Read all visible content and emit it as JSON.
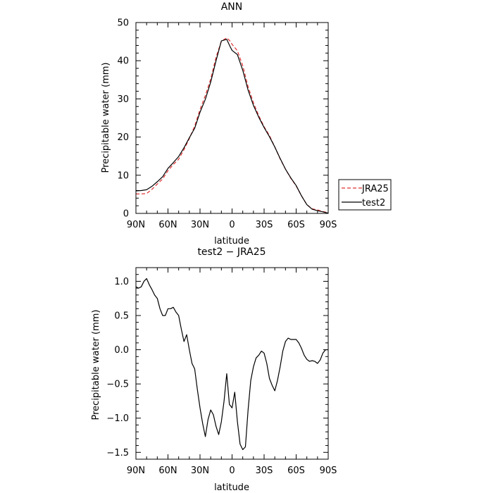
{
  "chart_data": [
    {
      "type": "line",
      "title": "ANN",
      "xlabel": "latitude",
      "ylabel": "Precipitable water  (mm)",
      "xlim": [
        90,
        -90
      ],
      "ylim": [
        0,
        50
      ],
      "x_ticks": [
        90,
        60,
        30,
        0,
        -30,
        -60,
        -90
      ],
      "x_tick_labels": [
        "90N",
        "60N",
        "30N",
        "0",
        "30S",
        "60S",
        "90S"
      ],
      "y_ticks": [
        0,
        10,
        20,
        30,
        40,
        50
      ],
      "y_tick_labels": [
        "0",
        "10",
        "20",
        "30",
        "40",
        "50"
      ],
      "grid": false,
      "legend_position": "right, outside plot",
      "series": [
        {
          "name": "JRA25",
          "color": "#e03030",
          "dash": "dashed",
          "x": [
            90,
            85,
            80,
            75,
            70,
            65,
            60,
            55,
            50,
            45,
            40,
            35,
            30,
            25,
            20,
            15,
            10,
            5,
            2,
            0,
            -5,
            -10,
            -15,
            -20,
            -25,
            -30,
            -35,
            -40,
            -45,
            -50,
            -55,
            -60,
            -65,
            -70,
            -75,
            -80,
            -85,
            -88,
            -90
          ],
          "y": [
            5.1,
            5.1,
            5.2,
            6.3,
            7.7,
            9.0,
            11.2,
            12.8,
            14.2,
            16.7,
            19.6,
            22.9,
            27.2,
            30.9,
            35.2,
            40.9,
            45.1,
            46.0,
            45.2,
            44.3,
            42.6,
            38.7,
            33.2,
            29.0,
            25.6,
            22.7,
            20.4,
            17.4,
            14.3,
            11.6,
            9.2,
            7.2,
            4.6,
            2.3,
            1.2,
            0.9,
            0.5,
            0.3,
            0.2
          ]
        },
        {
          "name": "test2",
          "color": "#000000",
          "dash": "solid",
          "x": [
            90,
            85,
            80,
            75,
            70,
            65,
            60,
            55,
            50,
            45,
            40,
            35,
            30,
            25,
            20,
            15,
            10,
            5,
            2,
            0,
            -5,
            -10,
            -15,
            -20,
            -25,
            -30,
            -35,
            -40,
            -45,
            -50,
            -55,
            -60,
            -65,
            -70,
            -75,
            -80,
            -85,
            -88,
            -90
          ],
          "y": [
            5.9,
            6.0,
            6.2,
            7.1,
            8.3,
            9.6,
            11.8,
            13.3,
            14.9,
            17.2,
            19.8,
            22.3,
            26.5,
            29.9,
            34.4,
            40.0,
            45.2,
            45.6,
            43.8,
            42.7,
            41.6,
            37.5,
            32.3,
            28.3,
            25.2,
            22.5,
            20.1,
            17.4,
            14.4,
            11.6,
            9.3,
            7.3,
            4.6,
            2.3,
            1.1,
            0.7,
            0.4,
            0.2,
            0.1
          ]
        }
      ]
    },
    {
      "type": "line",
      "title": "test2  −  JRA25",
      "xlabel": "latitude",
      "ylabel": "Precipitable water  (mm)",
      "xlim": [
        90,
        -90
      ],
      "ylim": [
        -1.6,
        1.2
      ],
      "x_ticks": [
        90,
        60,
        30,
        0,
        -30,
        -60,
        -90
      ],
      "x_tick_labels": [
        "90N",
        "60N",
        "30N",
        "0",
        "30S",
        "60S",
        "90S"
      ],
      "y_ticks": [
        1.0,
        0.5,
        0.0,
        -0.5,
        -1.0,
        -1.5
      ],
      "y_tick_labels": [
        "1.0",
        "0.5",
        "0.0",
        "−0.5",
        "−1.0",
        "−1.5"
      ],
      "grid": false,
      "series": [
        {
          "color": "#000000",
          "dash": "solid",
          "x": [
            90,
            87.5,
            85,
            82.5,
            80,
            77.5,
            75,
            72.5,
            70,
            67.5,
            65,
            62.5,
            60,
            57.5,
            55,
            52.5,
            50,
            47.5,
            45,
            42.5,
            40,
            37.5,
            35,
            32.5,
            30,
            27.5,
            25,
            22.5,
            20,
            17.5,
            15,
            12.5,
            10,
            7.5,
            5,
            2.5,
            0,
            -2.5,
            -5,
            -7.5,
            -10,
            -12.5,
            -15,
            -17.5,
            -20,
            -22.5,
            -25,
            -27.5,
            -30,
            -32.5,
            -35,
            -37.5,
            -40,
            -42.5,
            -45,
            -47.5,
            -50,
            -52.5,
            -55,
            -57.5,
            -60,
            -62.5,
            -65,
            -67.5,
            -70,
            -72.5,
            -75,
            -77.5,
            -80,
            -82.5,
            -85,
            -87.5,
            -90
          ],
          "y": [
            0.92,
            0.9,
            0.92,
            1.0,
            1.04,
            0.95,
            0.88,
            0.8,
            0.75,
            0.6,
            0.5,
            0.5,
            0.6,
            0.6,
            0.62,
            0.55,
            0.5,
            0.3,
            0.12,
            0.22,
            0.0,
            -0.2,
            -0.28,
            -0.58,
            -0.85,
            -1.08,
            -1.27,
            -1.02,
            -0.88,
            -0.95,
            -1.12,
            -1.24,
            -1.05,
            -0.75,
            -0.35,
            -0.8,
            -0.85,
            -0.62,
            -1.05,
            -1.38,
            -1.46,
            -1.42,
            -0.88,
            -0.45,
            -0.25,
            -0.12,
            -0.08,
            -0.02,
            -0.05,
            -0.2,
            -0.42,
            -0.52,
            -0.6,
            -0.45,
            -0.25,
            -0.02,
            0.12,
            0.17,
            0.15,
            0.15,
            0.15,
            0.1,
            0.02,
            -0.08,
            -0.14,
            -0.17,
            -0.16,
            -0.17,
            -0.2,
            -0.15,
            -0.05,
            0.0,
            0.0
          ]
        }
      ]
    }
  ]
}
